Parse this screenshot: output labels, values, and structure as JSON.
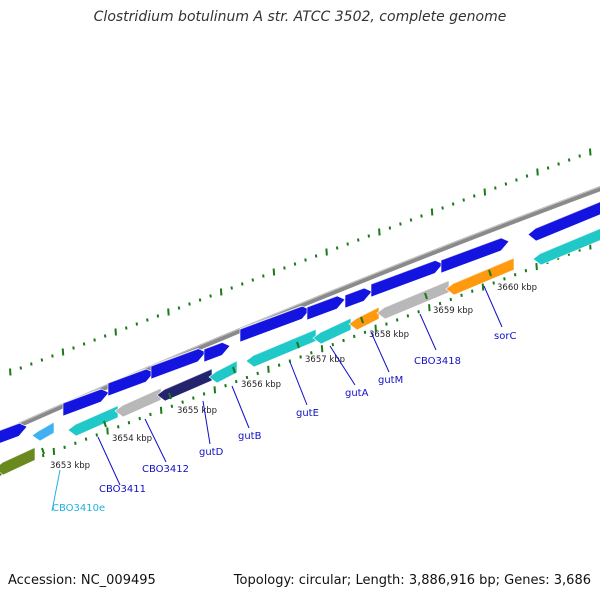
{
  "title": "Clostridium botulinum A str. ATCC 3502, complete genome",
  "footer": {
    "accession_label": "Accession:",
    "accession": "NC_009495",
    "topology_label": "Topology:",
    "topology": "circular",
    "length_label": "Length:",
    "length": "3,886,916 bp",
    "genes_label": "Genes:",
    "genes": "3,686"
  },
  "colors": {
    "backbone": "#8a8a8a",
    "tick_green": "#1a7a1a",
    "label_blue": "#1010c8",
    "label_cyan": "#20b0e0",
    "gene_blue": "#1414e0",
    "gene_cyan": "#20c8c8",
    "gene_gray": "#b8b8b8",
    "gene_navy": "#24246e",
    "gene_orange": "#ff9a10",
    "gene_olive": "#6a8a20",
    "gene_lightblue": "#40b0f0"
  },
  "scale_labels": [
    "3653 kbp",
    "3654 kbp",
    "3655 kbp",
    "3656 kbp",
    "3657 kbp",
    "3658 kbp",
    "3659 kbp",
    "3660 kbp"
  ],
  "gene_labels": [
    {
      "text": "CBO3410e",
      "color": "cyan"
    },
    {
      "text": "CBO3411",
      "color": "blue"
    },
    {
      "text": "CBO3412",
      "color": "blue"
    },
    {
      "text": "gutD",
      "color": "blue"
    },
    {
      "text": "gutB",
      "color": "blue"
    },
    {
      "text": "gutE",
      "color": "blue"
    },
    {
      "text": "gutA",
      "color": "blue"
    },
    {
      "text": "gutM",
      "color": "blue"
    },
    {
      "text": "CBO3418",
      "color": "blue"
    },
    {
      "text": "sorC",
      "color": "blue"
    }
  ]
}
